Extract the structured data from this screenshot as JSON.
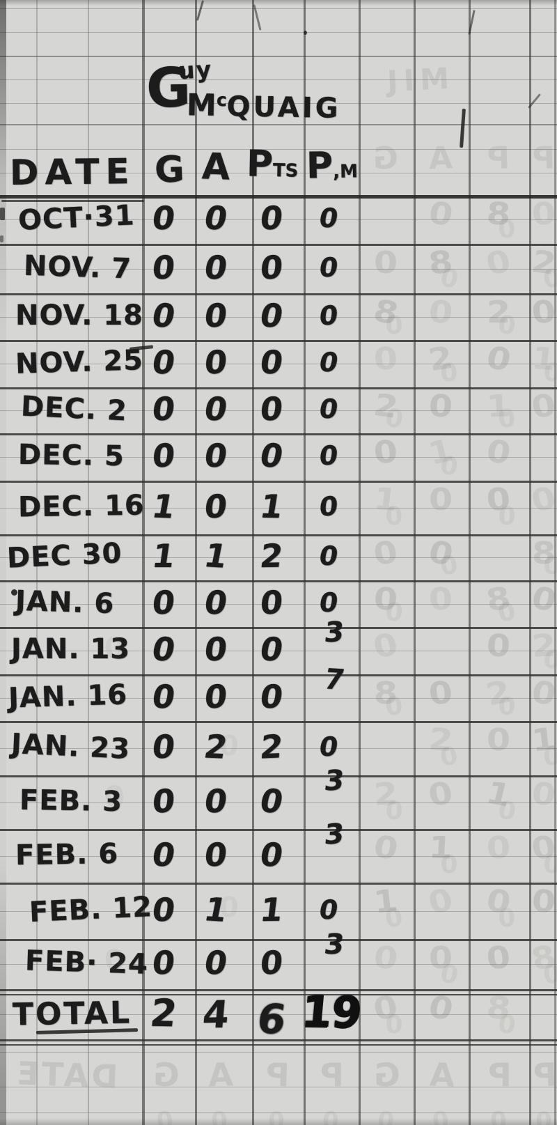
{
  "sheet": {
    "player": {
      "full_name": "Guy McQuaig",
      "first_initial": "G",
      "first_rest": "uy",
      "surname_m": "M",
      "surname_c": "c",
      "surname_rest": "QUAIG"
    },
    "header": {
      "date": "DATE",
      "g": "G",
      "a": "A",
      "pts_main": "P",
      "pts_sub": "TS",
      "pim_main": "P",
      "pim_sub": ",M"
    },
    "rows": [
      {
        "date": "OCT·31",
        "g": "0",
        "a": "0",
        "pts": "0",
        "pim": "0"
      },
      {
        "date": "NOV. 7",
        "g": "0",
        "a": "0",
        "pts": "0",
        "pim": "0"
      },
      {
        "date": "NOV. 18",
        "g": "0",
        "a": "0",
        "pts": "0",
        "pim": "0"
      },
      {
        "date": "NOV. 25",
        "g": "0",
        "a": "0",
        "pts": "0",
        "pim": "0"
      },
      {
        "date": "DEC. 2",
        "g": "0",
        "a": "0",
        "pts": "0",
        "pim": "0"
      },
      {
        "date": "DEC. 5",
        "g": "0",
        "a": "0",
        "pts": "0",
        "pim": "0"
      },
      {
        "date": "DEC. 16",
        "g": "1",
        "a": "0",
        "pts": "1",
        "pim": "0"
      },
      {
        "date": "DEC 30",
        "g": "1",
        "a": "1",
        "pts": "2",
        "pim": "0"
      },
      {
        "date": "JAN. 6",
        "g": "0",
        "a": "0",
        "pts": "0",
        "pim": "0"
      },
      {
        "date": "JAN. 13",
        "g": "0",
        "a": "0",
        "pts": "0",
        "pim": "3"
      },
      {
        "date": "JAN. 16",
        "g": "0",
        "a": "0",
        "pts": "0",
        "pim": "7"
      },
      {
        "date": "JAN. 23",
        "g": "0",
        "a": "2",
        "pts": "2",
        "pim": "0"
      },
      {
        "date": "FEB. 3",
        "g": "0",
        "a": "0",
        "pts": "0",
        "pim": "3"
      },
      {
        "date": "FEB. 6",
        "g": "0",
        "a": "0",
        "pts": "0",
        "pim": "3"
      },
      {
        "date": "FEB. 12",
        "g": "0",
        "a": "1",
        "pts": "1",
        "pim": "0"
      },
      {
        "date": "FEB· 24",
        "g": "0",
        "a": "0",
        "pts": "0",
        "pim": "3"
      }
    ],
    "total": {
      "label": "TOTAL",
      "g": "2",
      "a": "4",
      "pts": "6",
      "pim": "19"
    },
    "ghost_bleedthrough": {
      "top_right_text": "JIM",
      "header_echo": [
        "G",
        "A",
        "P",
        "P"
      ],
      "bottom_echo": [
        "DATE",
        "G",
        "A",
        "P",
        "P",
        "G",
        "A",
        "P",
        "P"
      ],
      "cell_glyphs": [
        "0",
        "0",
        "8",
        "0",
        "2",
        "0",
        "1",
        "0"
      ]
    },
    "colors": {
      "paper": "#d6d6d4",
      "grid_dark": "#3a3a37",
      "grid_light": "#6c6c67",
      "ink": "#1c1c1c",
      "ghost": "#6e6e6b"
    }
  }
}
